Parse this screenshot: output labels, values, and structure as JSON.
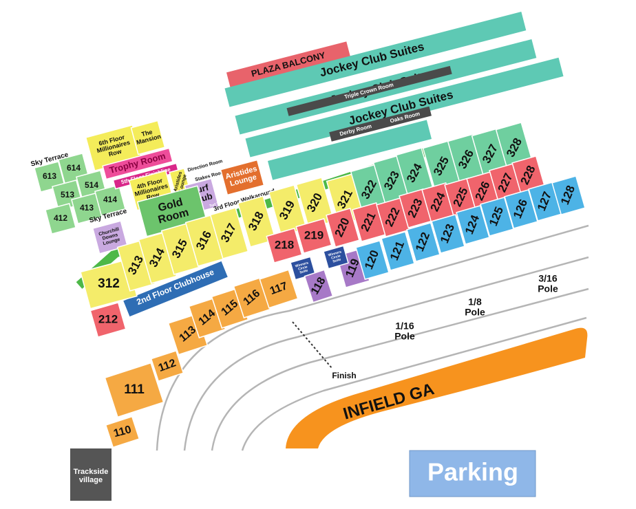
{
  "suites": {
    "plaza_balcony": "PLAZA BALCONY",
    "jockey_club_suites": [
      "Jockey Club Suites",
      "Jockey Club Suites",
      "Jockey Club Suites"
    ],
    "triple_crown_room": "Triple Crown Room",
    "derby_room": "Derby Room",
    "oaks_room": "Oaks Room"
  },
  "areas": {
    "sky_terrace": [
      "Sky Terrace",
      "Sky Terrace"
    ],
    "sixth_floor": [
      "6th Floor",
      "Millionaires",
      "Row"
    ],
    "mansion": [
      "The",
      "Mansion"
    ],
    "trophy_room": "Trophy Room",
    "fifth_floor": "5th Floor Finishline",
    "fourth_floor": [
      "4th Floor",
      "Millionaires",
      "Row"
    ],
    "aristides_small": [
      "Aristides",
      "Lounge"
    ],
    "turf_club": [
      "Turf",
      "Club"
    ],
    "direction_room": "Direction Room",
    "stakes_room": "Stakes Room",
    "aristides_lounge": [
      "Aristides",
      "Lounge"
    ],
    "gold_room": [
      "Gold",
      "Room"
    ],
    "turf_terrace": "Turf Terrace",
    "walkaround": "3rd Floor Walkaround",
    "churchill_lounge": [
      "Churchill",
      "Downs",
      "Lounge"
    ],
    "clubhouse_2nd": "2nd Floor Clubhouse",
    "winners_circle": [
      [
        "Winners",
        "Circle",
        "Suite"
      ],
      [
        "Winners",
        "Circle",
        "Suite"
      ]
    ],
    "infield": "INFIELD GA",
    "parking": "Parking",
    "trackside": [
      "Trackside",
      "village"
    ]
  },
  "track": {
    "finish": "Finish",
    "poles": [
      [
        "1/16",
        "Pole"
      ],
      [
        "1/8",
        "Pole"
      ],
      [
        "3/16",
        "Pole"
      ]
    ]
  },
  "sections": {
    "terrace": [
      "613",
      "614",
      "513",
      "514",
      "413",
      "414",
      "412"
    ],
    "row_300": [
      "312",
      "313",
      "314",
      "315",
      "316",
      "317",
      "318",
      "319",
      "320",
      "321",
      "322",
      "323",
      "324",
      "325",
      "326",
      "327",
      "328"
    ],
    "row_200": [
      "212",
      "218",
      "219",
      "220",
      "221",
      "222",
      "223",
      "224",
      "225",
      "226",
      "227",
      "228"
    ],
    "row_100": [
      "119",
      "120",
      "121",
      "122",
      "123",
      "124",
      "125",
      "126",
      "127",
      "128"
    ],
    "clubhouse": [
      "110",
      "111",
      "112",
      "113",
      "114",
      "115",
      "116",
      "117",
      "118"
    ]
  }
}
